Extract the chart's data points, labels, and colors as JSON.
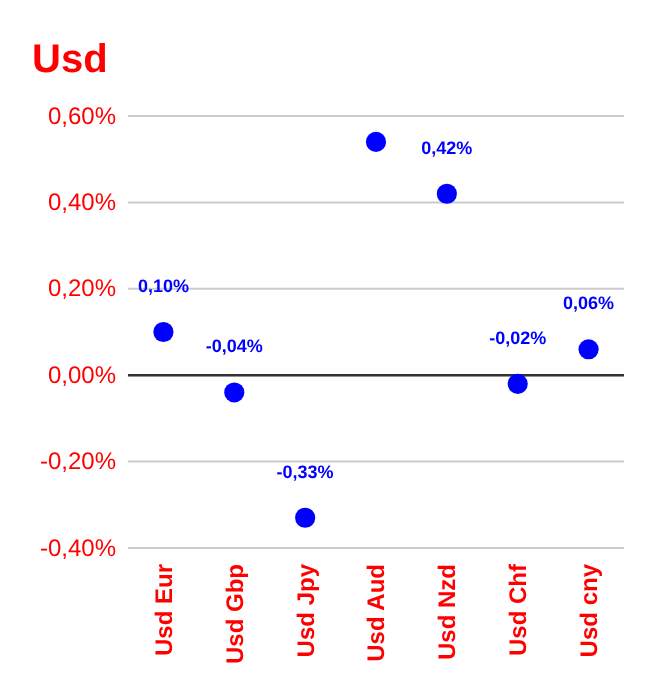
{
  "chart_data": {
    "type": "scatter",
    "title": "Usd",
    "categories": [
      "Usd Eur",
      "Usd Gbp",
      "Usd Jpy",
      "Usd Aud",
      "Usd Nzd",
      "Usd Chf",
      "Usd cny"
    ],
    "series": [
      {
        "color": "#0000ff",
        "values": [
          0.1,
          -0.04,
          -0.33,
          0.54,
          0.42,
          -0.02,
          0.06
        ],
        "value_labels": [
          "0,10%",
          "-0,04%",
          "-0,33%",
          null,
          "0,42%",
          "-0,02%",
          "0,06%"
        ]
      }
    ],
    "ylim": [
      -0.4,
      0.6
    ],
    "yticks": [
      {
        "value": -0.4,
        "label": "-0,40%"
      },
      {
        "value": -0.2,
        "label": "-0,20%"
      },
      {
        "value": 0,
        "label": "0,00%"
      },
      {
        "value": 0.2,
        "label": "0,20%"
      },
      {
        "value": 0.4,
        "label": "0,40%"
      },
      {
        "value": 0.6,
        "label": "0,60%"
      }
    ],
    "ref_lines": [
      {
        "axis": "y",
        "value": 0,
        "color": "#333333"
      }
    ],
    "grid": "y",
    "marker": "circle"
  }
}
